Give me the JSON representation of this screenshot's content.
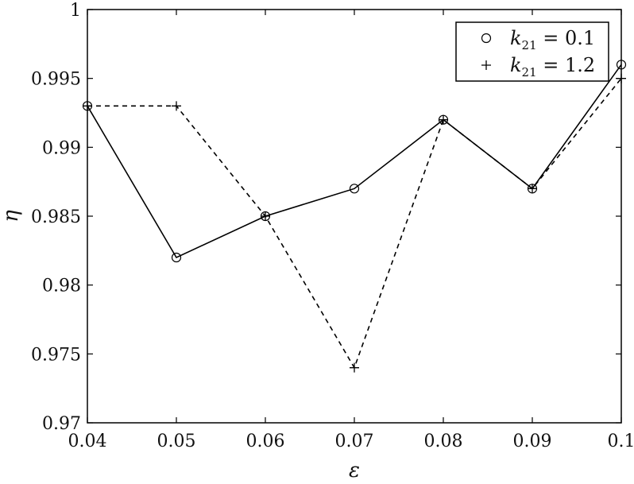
{
  "chart_data": {
    "type": "line",
    "xlabel": "ε",
    "ylabel": "η",
    "xlim": [
      0.04,
      0.1
    ],
    "ylim": [
      0.97,
      1.0
    ],
    "x": [
      0.04,
      0.05,
      0.06,
      0.07,
      0.08,
      0.09,
      0.1
    ],
    "x_tick_labels": [
      "0.04",
      "0.05",
      "0.06",
      "0.07",
      "0.08",
      "0.09",
      "0.1"
    ],
    "y_ticks": [
      0.97,
      0.975,
      0.98,
      0.985,
      0.99,
      0.995,
      1.0
    ],
    "y_tick_labels": [
      "0.97",
      "0.975",
      "0.98",
      "0.985",
      "0.99",
      "0.995",
      "1"
    ],
    "grid": false,
    "legend_position": "top-right",
    "series": [
      {
        "name": "k21 = 0.1",
        "legend_var": "k",
        "legend_sub": "21",
        "legend_rest": " = 0.1",
        "marker": "circle",
        "line_style": "solid",
        "color": "#000000",
        "values": [
          0.993,
          0.982,
          0.985,
          0.987,
          0.992,
          0.987,
          0.996
        ]
      },
      {
        "name": "k21 = 1.2",
        "legend_var": "k",
        "legend_sub": "21",
        "legend_rest": " = 1.2",
        "marker": "plus",
        "line_style": "dashed",
        "color": "#000000",
        "values": [
          0.993,
          0.993,
          0.985,
          0.974,
          0.992,
          0.987,
          0.995
        ]
      }
    ]
  }
}
